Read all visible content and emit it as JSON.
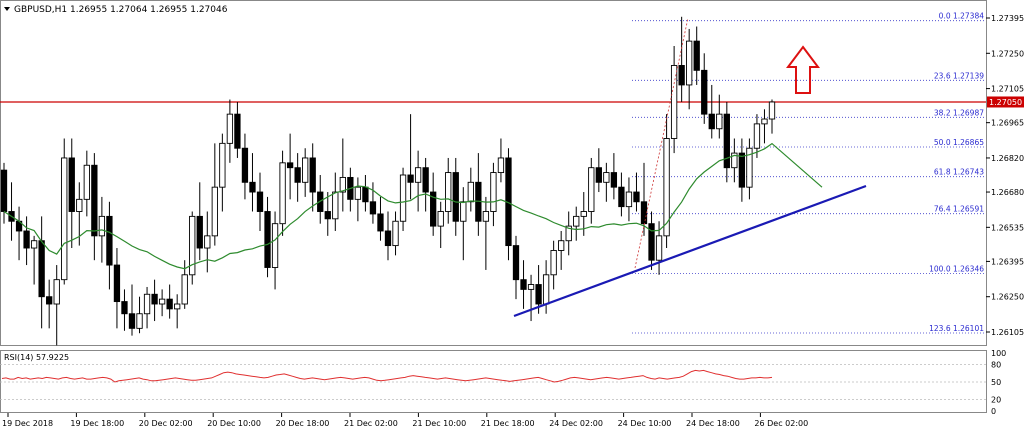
{
  "header": {
    "symbol_label": "GBPUSD,H1",
    "ohlc_label": "1.26955 1.27064 1.26955 1.27046"
  },
  "rsi": {
    "label": "RSI(14) 57.9225",
    "levels": [
      100,
      80,
      50,
      20,
      0
    ],
    "values": [
      56,
      57,
      55,
      55,
      58,
      56,
      57,
      55,
      56,
      57,
      56,
      58,
      57,
      56,
      55,
      57,
      58,
      56,
      55,
      56,
      57,
      55,
      55,
      56,
      57,
      58,
      57,
      55,
      50,
      52,
      53,
      54,
      55,
      56,
      57,
      55,
      54,
      52,
      52,
      53,
      54,
      55,
      56,
      57,
      56,
      55,
      54,
      53,
      53,
      54,
      55,
      56,
      57,
      60,
      63,
      66,
      67,
      66,
      64,
      63,
      62,
      61,
      60,
      59,
      58,
      57,
      58,
      60,
      62,
      63,
      64,
      62,
      60,
      58,
      56,
      55,
      56,
      57,
      56,
      55,
      54,
      55,
      56,
      57,
      58,
      57,
      56,
      55,
      56,
      57,
      58,
      57,
      55,
      53,
      52,
      53,
      54,
      55,
      56,
      57,
      58,
      60,
      61,
      60,
      59,
      58,
      57,
      56,
      55,
      56,
      57,
      56,
      55,
      54,
      53,
      52,
      53,
      54,
      55,
      56,
      57,
      56,
      55,
      54,
      53,
      52,
      51,
      52,
      53,
      54,
      55,
      56,
      57,
      58,
      56,
      54,
      52,
      50,
      51,
      53,
      55,
      57,
      58,
      57,
      56,
      55,
      54,
      55,
      56,
      57,
      58,
      57,
      56,
      55,
      56,
      57,
      58,
      59,
      60,
      61,
      58,
      56,
      55,
      57,
      56,
      55,
      56,
      57,
      58,
      60,
      64,
      68,
      70,
      69,
      70,
      68,
      66,
      64,
      63,
      61,
      60,
      58,
      56,
      55,
      55,
      56,
      57,
      57,
      58,
      57,
      57,
      57.9225
    ]
  },
  "price_axis": {
    "ticks": [
      "1.27395",
      "1.27250",
      "1.27105",
      "1.26965",
      "1.26820",
      "1.26680",
      "1.26535",
      "1.26395",
      "1.26250",
      "1.26105"
    ],
    "current_price": "1.27050"
  },
  "time_axis": {
    "labels": [
      "19 Dec 2018",
      "19 Dec 18:00",
      "20 Dec 02:00",
      "20 Dec 10:00",
      "20 Dec 18:00",
      "21 Dec 02:00",
      "21 Dec 10:00",
      "21 Dec 18:00",
      "24 Dec 02:00",
      "24 Dec 10:00",
      "24 Dec 18:00",
      "26 Dec 02:00"
    ]
  },
  "fibonacci": [
    {
      "label": "0.0 1.27384",
      "price": 1.27384
    },
    {
      "label": "23.6 1.27139",
      "price": 1.27139
    },
    {
      "label": "38.2 1.26987",
      "price": 1.26987
    },
    {
      "label": "50.0 1.26865",
      "price": 1.26865
    },
    {
      "label": "61.8 1.26743",
      "price": 1.26743
    },
    {
      "label": "76.4 1.26591",
      "price": 1.26591
    },
    {
      "label": "100.0 1.26346",
      "price": 1.26346
    },
    {
      "label": "123.6 1.26101",
      "price": 1.26101
    }
  ],
  "resistance_price": 1.2705,
  "colors": {
    "bull": "#ffffff",
    "bear": "#000000",
    "ma": "#2e8b2e",
    "trendline": "#1a1ab4",
    "resistance": "#cc0000",
    "fib": "#3a3aca",
    "arrow": "#dd1111",
    "rsi": "#e03030"
  }
}
